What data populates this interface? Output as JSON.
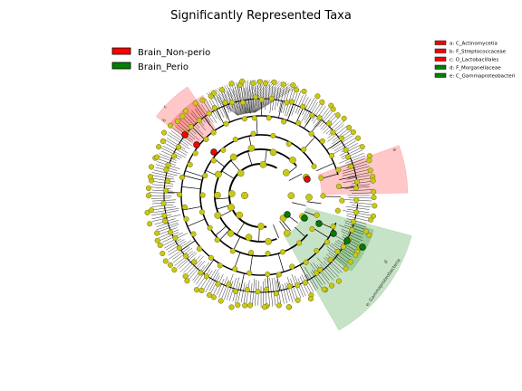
{
  "chart_data": {
    "type": "cladogram",
    "title": "Significantly Represented Taxa",
    "groups": [
      {
        "name": "Brain_Non-perio",
        "color": "#ff0000",
        "fill": "rgba(255,0,0,0.22)"
      },
      {
        "name": "Brain_Perio",
        "color": "#008000",
        "fill": "rgba(0,128,0,0.22)"
      }
    ],
    "neutral_node_color": "#c8c81a",
    "taxa_key": [
      {
        "letter": "a",
        "label": "a: C_Actinomycetia",
        "group": "Brain_Non-perio"
      },
      {
        "letter": "b",
        "label": "b: F_Streptococcaceae",
        "group": "Brain_Non-perio"
      },
      {
        "letter": "c",
        "label": "c: O_Lactobacillales",
        "group": "Brain_Non-perio"
      },
      {
        "letter": "d",
        "label": "d: F_Morganellaceae",
        "group": "Brain_Perio"
      },
      {
        "letter": "e",
        "label": "e: C_Gammaproteobacteri",
        "group": "Brain_Perio"
      }
    ],
    "highlighted_clades": [
      {
        "label": "b",
        "group": "Brain_Non-perio",
        "level": "family"
      },
      {
        "label": "c",
        "group": "Brain_Non-perio",
        "level": "order"
      },
      {
        "label": "a",
        "group": "Brain_Non-perio",
        "level": "class"
      },
      {
        "label": "d",
        "group": "Brain_Perio",
        "level": "family"
      },
      {
        "label": "e: Gammaproteobacteria",
        "group": "Brain_Perio",
        "level": "class"
      }
    ],
    "rings": 6
  }
}
